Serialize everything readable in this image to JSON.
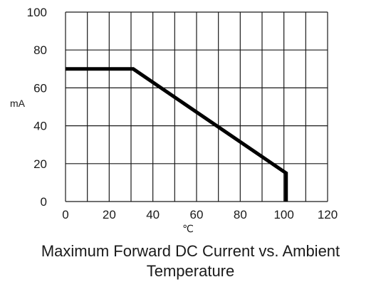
{
  "chart_data": {
    "type": "line",
    "title_lines": [
      "Maximum Forward DC Current vs. Ambient",
      "Temperature"
    ],
    "xlabel": "℃",
    "ylabel": "mA",
    "xlim": [
      0,
      120
    ],
    "ylim": [
      0,
      100
    ],
    "x_ticks": [
      0,
      20,
      40,
      60,
      80,
      100,
      120
    ],
    "y_ticks": [
      0,
      20,
      40,
      60,
      80,
      100
    ],
    "x_grid_step": 10,
    "y_grid_step": 20,
    "grid": true,
    "series": [
      {
        "x": [
          0,
          31,
          101,
          101
        ],
        "y": [
          70,
          70,
          15,
          0
        ],
        "color": "#000000"
      }
    ]
  }
}
